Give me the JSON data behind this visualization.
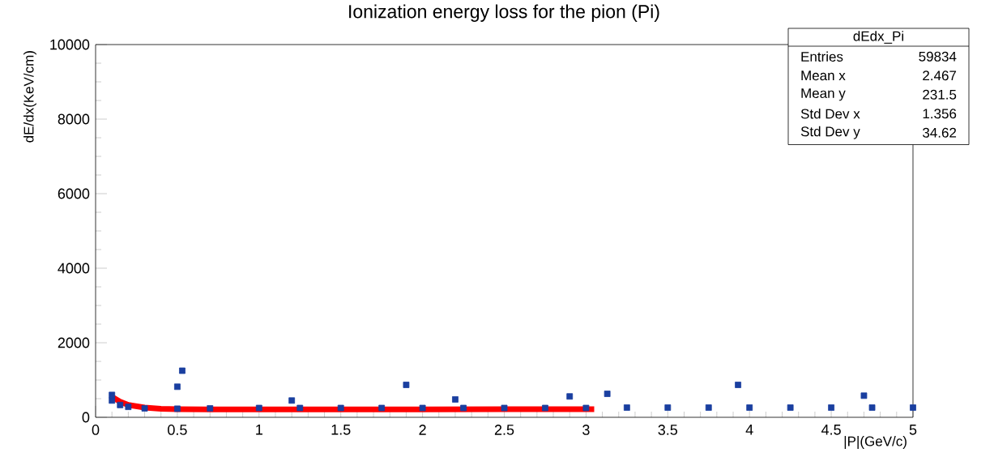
{
  "chart_data": {
    "type": "scatter",
    "title": "Ionization energy loss for the pion (Pi)",
    "xlabel": "|P|(GeV/c)",
    "ylabel": "dE/dx(KeV/cm)",
    "xlim": [
      0,
      5
    ],
    "xticks": [
      0,
      0.5,
      1,
      1.5,
      2,
      2.5,
      3,
      3.5,
      4,
      4.5,
      5
    ],
    "ylim": [
      0,
      10000
    ],
    "yticks": [
      0,
      2000,
      4000,
      6000,
      8000,
      10000
    ],
    "marker": "square",
    "annotations": [
      "dEdx_Pi",
      "Entries",
      "59834",
      "Mean x",
      "2.467",
      "Mean y",
      "231.5",
      "Std Dev x",
      "1.356",
      "Std Dev y",
      "34.62"
    ],
    "series": [
      {
        "color": "#1a3fa0",
        "x": [
          0.1,
          0.15,
          0.2,
          0.3,
          0.5,
          0.7,
          1,
          1.25,
          1.5,
          1.75,
          2,
          2.25,
          2.5,
          2.75,
          3,
          3.25,
          3.5,
          3.75,
          4,
          4.25,
          4.5,
          4.75,
          5,
          0.53,
          0.5,
          1.9,
          3.93,
          3.13,
          0.1,
          2.9,
          4.7,
          1.2,
          2.2
        ],
        "values": [
          450,
          330,
          280,
          240,
          230,
          240,
          250,
          250,
          250,
          250,
          250,
          250,
          250,
          250,
          250,
          260,
          260,
          260,
          260,
          260,
          260,
          260,
          260,
          1250,
          820,
          870,
          870,
          630,
          600,
          560,
          580,
          450,
          480
        ]
      },
      {
        "type": "line",
        "color": "#ff0000",
        "marker": "none",
        "x": [
          0.1,
          0.15,
          0.2,
          0.3,
          0.4,
          0.5,
          0.7,
          1,
          1.5,
          2,
          2.5,
          3.05
        ],
        "values": [
          550,
          420,
          330,
          260,
          230,
          220,
          210,
          210,
          210,
          210,
          220,
          220
        ]
      }
    ]
  }
}
